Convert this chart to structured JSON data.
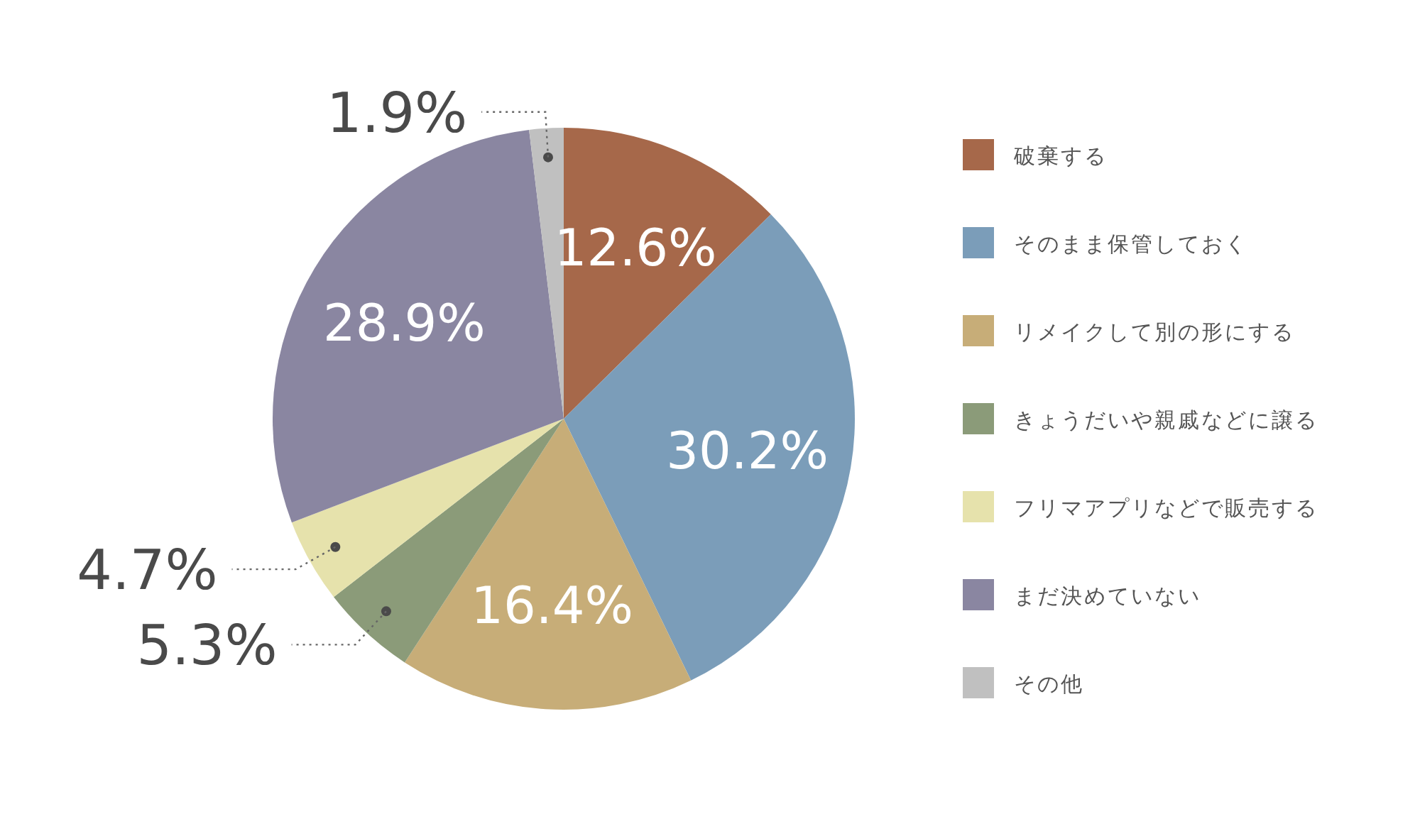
{
  "chart_data": {
    "type": "pie",
    "categories": [
      "破棄する",
      "そのまま保管しておく",
      "リメイクして別の形にする",
      "きょうだいや親戚などに譲る",
      "フリマアプリなどで販売する",
      "まだ決めていない",
      "その他"
    ],
    "values": [
      12.6,
      30.2,
      16.4,
      5.3,
      4.7,
      28.9,
      1.9
    ],
    "colors": [
      "#a6684a",
      "#7b9db9",
      "#c7ad78",
      "#8b9b79",
      "#e6e2ac",
      "#8a86a1",
      "#c0c0c0"
    ],
    "value_labels": [
      "12.6%",
      "30.2%",
      "16.4%",
      "5.3%",
      "4.7%",
      "28.9%",
      "1.9%"
    ],
    "legend": "right"
  }
}
